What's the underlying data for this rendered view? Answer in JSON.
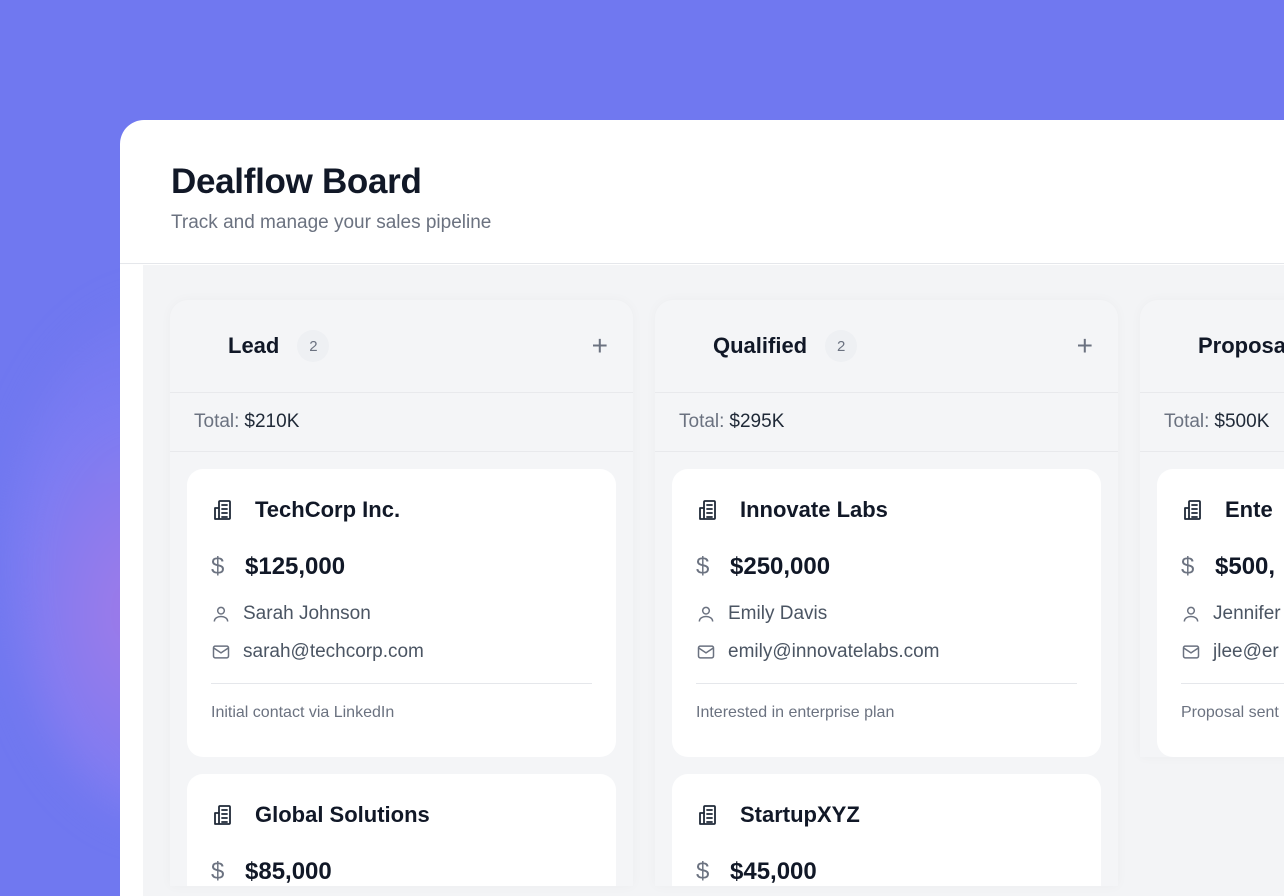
{
  "header": {
    "title": "Dealflow Board",
    "subtitle": "Track and manage your sales pipeline"
  },
  "columns": [
    {
      "name": "Lead",
      "count": "2",
      "total_label": "Total:",
      "total": "$210K",
      "cards": [
        {
          "company": "TechCorp Inc.",
          "amount": "$125,000",
          "contact": "Sarah Johnson",
          "email": "sarah@techcorp.com",
          "note": "Initial contact via LinkedIn"
        },
        {
          "company": "Global Solutions",
          "amount": "$85,000"
        }
      ]
    },
    {
      "name": "Qualified",
      "count": "2",
      "total_label": "Total:",
      "total": "$295K",
      "cards": [
        {
          "company": "Innovate Labs",
          "amount": "$250,000",
          "contact": "Emily Davis",
          "email": "emily@innovatelabs.com",
          "note": "Interested in enterprise plan"
        },
        {
          "company": "StartupXYZ",
          "amount": "$45,000"
        }
      ]
    },
    {
      "name": "Proposa",
      "total_label": "Total:",
      "total": "$500K",
      "cards": [
        {
          "company": "Ente",
          "amount": "$500,",
          "contact": "Jennifer",
          "email": "jlee@er",
          "note": "Proposal sent"
        }
      ]
    }
  ],
  "colors": {
    "background": "#7078f0",
    "board": "#f3f4f6",
    "text": "#111827",
    "muted": "#6b7280"
  }
}
